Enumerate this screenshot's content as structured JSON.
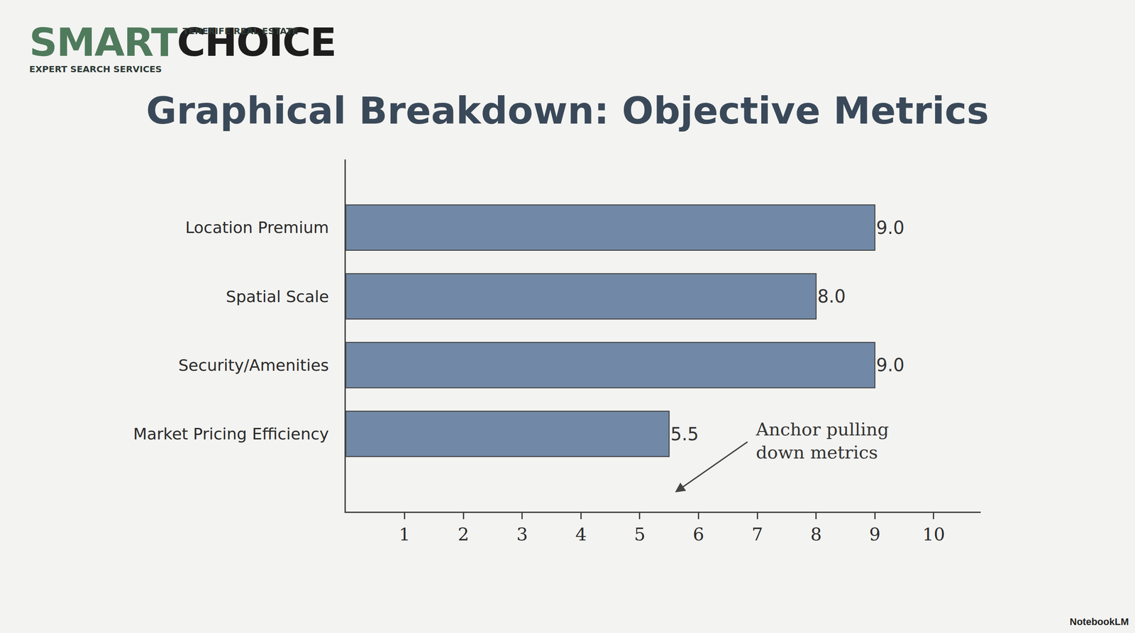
{
  "logo": {
    "first": "SMART",
    "second": "CHOICE",
    "tagline": "TENERIFE REAL ESTATE",
    "subline": "EXPERT SEARCH SERVICES"
  },
  "watermark": "NotebookLM",
  "chart_data": {
    "type": "bar",
    "orientation": "horizontal",
    "title": "Graphical Breakdown: Objective Metrics",
    "categories": [
      "Location Premium",
      "Spatial Scale",
      "Security/Amenities",
      "Market Pricing Efficiency"
    ],
    "values": [
      9.0,
      8.0,
      9.0,
      5.5
    ],
    "value_labels": [
      "9.0",
      "8.0",
      "9.0",
      "5.5"
    ],
    "data_labels": true,
    "color": "#7189a6",
    "xlim": [
      0,
      10.8
    ],
    "xticks": [
      1,
      2,
      3,
      4,
      5,
      6,
      7,
      8,
      9,
      10
    ],
    "grid": false,
    "annotations": [
      "Anchor pulling down metrics"
    ]
  }
}
